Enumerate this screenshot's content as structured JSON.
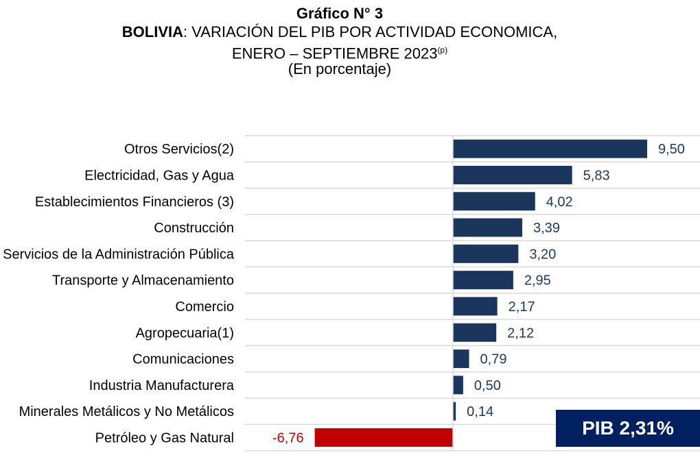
{
  "chart_data": {
    "type": "bar",
    "orientation": "horizontal",
    "title": "Gráfico N° 3",
    "subtitle_bold": "BOLIVIA",
    "subtitle": ": VARIACIÓN DEL PIB POR ACTIVIDAD ECONOMICA,",
    "subtitle2": "ENERO – SEPTIEMBRE 2023",
    "subtitle2_sup": "(p)",
    "unit_note": "(En porcentaje)",
    "categories": [
      "Otros Servicios(2)",
      "Electricidad, Gas y Agua",
      "Establecimientos Financieros (3)",
      "Construcción",
      "Servicios de la Administración Pública",
      "Transporte y Almacenamiento",
      "Comercio",
      "Agropecuaria(1)",
      "Comunicaciones",
      "Industria Manufacturera",
      "Minerales Metálicos y No Metálicos",
      "Petróleo y Gas Natural"
    ],
    "values": [
      9.5,
      5.83,
      4.02,
      3.39,
      3.2,
      2.95,
      2.17,
      2.12,
      0.79,
      0.5,
      0.14,
      -6.76
    ],
    "value_labels": [
      "9,50",
      "5,83",
      "4,02",
      "3,39",
      "3,20",
      "2,95",
      "2,17",
      "2,12",
      "0,79",
      "0,50",
      "0,14",
      "-6,76"
    ],
    "xlim": [
      -6.76,
      9.5
    ],
    "grid": "horizontal separators",
    "colors": {
      "positive": "#1b365d",
      "negative": "#c00000",
      "positive_label": "#1b365d",
      "negative_label": "#c00000"
    },
    "annotation": "PIB 2,31%",
    "annotation_color": "#002060"
  }
}
